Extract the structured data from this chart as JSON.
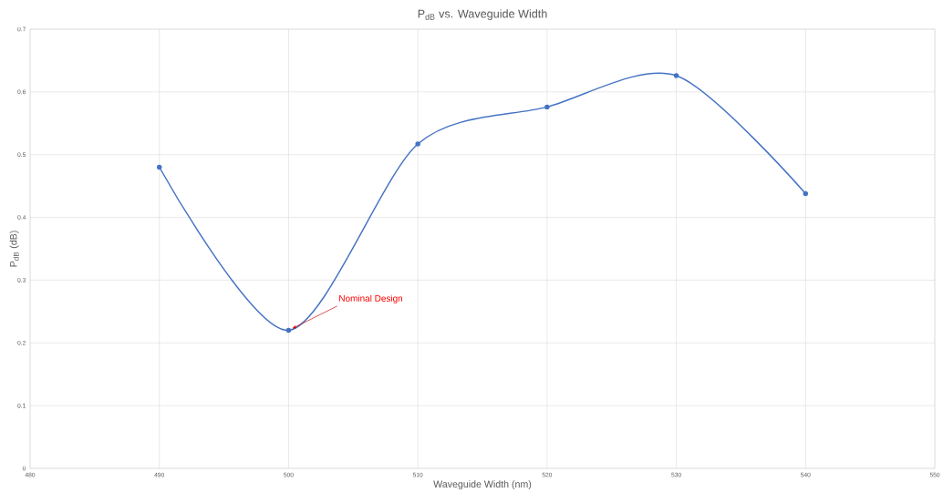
{
  "chart_data": {
    "type": "line",
    "title": "P$_{dB}$ vs. Waveguide Width",
    "xlabel": "Waveguide Width (nm)",
    "ylabel": "P$_{dB}$ (dB)",
    "x": [
      490,
      500,
      510,
      520,
      530,
      540
    ],
    "series": [
      {
        "color": "#4472c4",
        "values": [
          0.48,
          0.22,
          0.517,
          0.576,
          0.626,
          0.438
        ]
      }
    ],
    "xlim": [
      480,
      550
    ],
    "xticks": [
      480,
      490,
      500,
      510,
      520,
      530,
      540,
      550
    ],
    "ylim": [
      0,
      0.7
    ],
    "yticks": [
      0,
      0.1,
      0.2,
      0.3,
      0.4,
      0.5,
      0.6,
      0.7
    ],
    "grid": true,
    "marker": "circle",
    "line_style": "solid",
    "annotations": [
      {
        "text": "Nominal Design",
        "x": 500,
        "y": 0.22
      }
    ]
  }
}
